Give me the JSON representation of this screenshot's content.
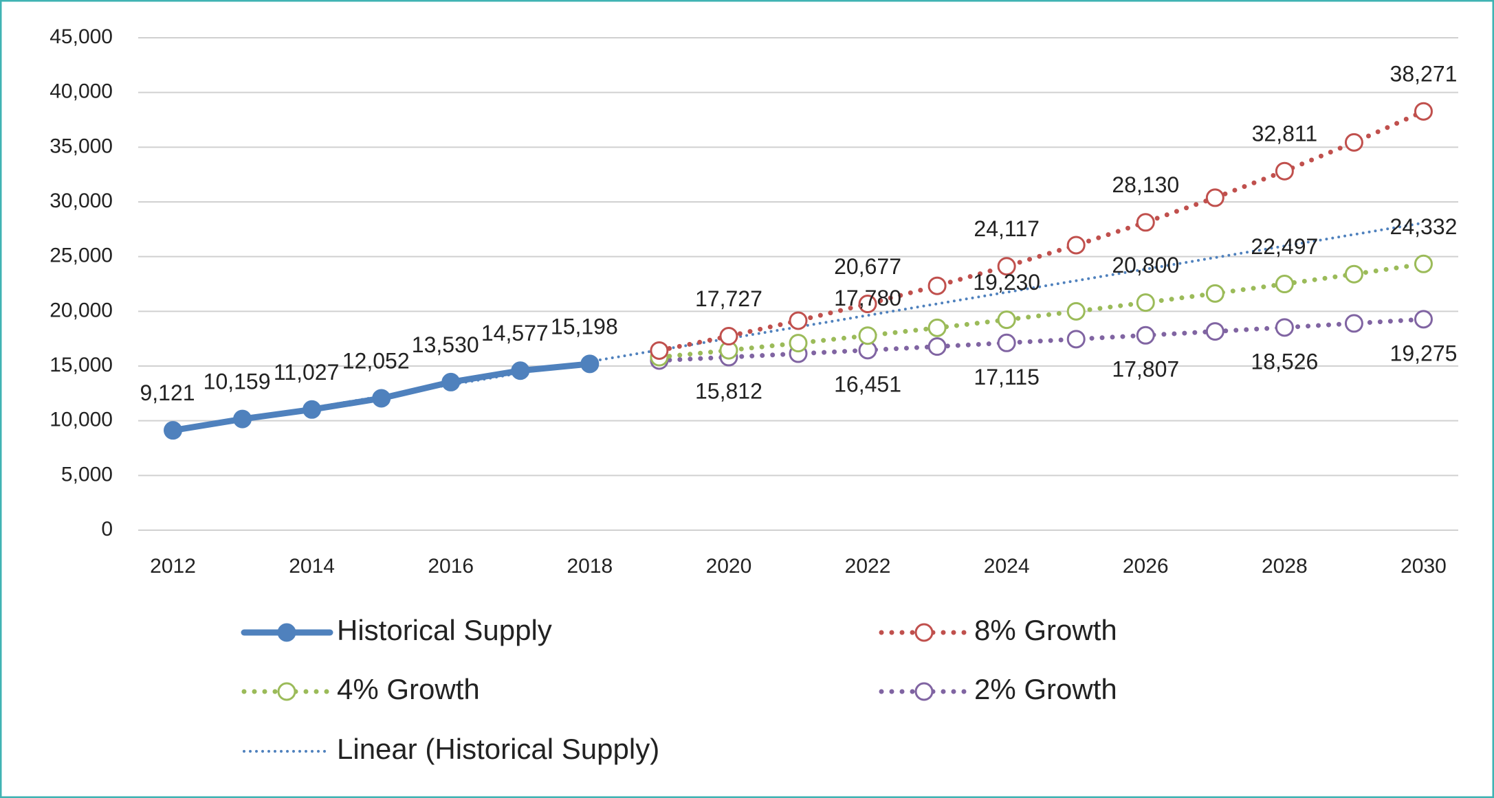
{
  "chart_data": {
    "type": "line",
    "x": [
      2012,
      2013,
      2014,
      2015,
      2016,
      2017,
      2018,
      2019,
      2020,
      2021,
      2022,
      2023,
      2024,
      2025,
      2026,
      2027,
      2028,
      2029,
      2030
    ],
    "xlim": [
      2011.5,
      2030.5
    ],
    "xticks": [
      2012,
      2014,
      2016,
      2018,
      2020,
      2022,
      2024,
      2026,
      2028,
      2030
    ],
    "ylim": [
      0,
      45000
    ],
    "yticks": [
      0,
      {
        "value": 5000,
        "label": "5,000"
      },
      {
        "value": 10000,
        "label": "10,000"
      },
      {
        "value": 15000,
        "label": "15,000"
      },
      {
        "value": 20000,
        "label": "20,000"
      },
      {
        "value": 25000,
        "label": "25,000"
      },
      {
        "value": 30000,
        "label": "30,000"
      },
      {
        "value": 35000,
        "label": "35,000"
      },
      {
        "value": 40000,
        "label": "40,000"
      },
      {
        "value": 45000,
        "label": "45,000"
      }
    ],
    "grid": true,
    "legend": "bottom",
    "series": [
      {
        "name": "Historical Supply",
        "color": "#4f81bd",
        "line_style": "solid",
        "marker": "filled-circle",
        "label_side": "above",
        "values": [
          9121,
          10159,
          11027,
          12052,
          13530,
          14577,
          15198,
          null,
          null,
          null,
          null,
          null,
          null,
          null,
          null,
          null,
          null,
          null,
          null
        ],
        "value_labels": [
          "9,121",
          "10,159",
          "11,027",
          "12,052",
          "13,530",
          "14,577",
          "15,198",
          null,
          null,
          null,
          null,
          null,
          null,
          null,
          null,
          null,
          null,
          null,
          null
        ]
      },
      {
        "name": "8% Growth",
        "color": "#c0504d",
        "line_style": "dotted",
        "marker": "open-circle",
        "label_side": "above",
        "values": [
          null,
          null,
          null,
          null,
          null,
          null,
          null,
          16414,
          17727,
          19146,
          20677,
          22331,
          24117,
          26047,
          28130,
          30381,
          32811,
          35436,
          38271
        ],
        "value_labels": [
          null,
          null,
          null,
          null,
          null,
          null,
          null,
          null,
          "17,727",
          null,
          "20,677",
          null,
          "24,117",
          null,
          "28,130",
          null,
          "32,811",
          null,
          "38,271"
        ]
      },
      {
        "name": "4% Growth",
        "color": "#9bbb59",
        "line_style": "dotted",
        "marker": "open-circle",
        "label_side": "above",
        "values": [
          null,
          null,
          null,
          null,
          null,
          null,
          null,
          15806,
          16438,
          17096,
          17780,
          18491,
          19230,
          19999,
          20800,
          21632,
          22497,
          23397,
          24332
        ],
        "value_labels": [
          null,
          null,
          null,
          null,
          null,
          null,
          null,
          null,
          null,
          null,
          "17,780",
          null,
          "19,230",
          null,
          "20,800",
          null,
          "22,497",
          null,
          "24,332"
        ]
      },
      {
        "name": "2% Growth",
        "color": "#8064a2",
        "line_style": "dotted",
        "marker": "open-circle",
        "label_side": "below",
        "values": [
          null,
          null,
          null,
          null,
          null,
          null,
          null,
          15502,
          15812,
          16128,
          16451,
          16780,
          17115,
          17458,
          17807,
          18163,
          18526,
          18897,
          19275
        ],
        "value_labels": [
          null,
          null,
          null,
          null,
          null,
          null,
          null,
          null,
          "15,812",
          null,
          "16,451",
          null,
          "17,115",
          null,
          "17,807",
          null,
          "18,526",
          null,
          "19,275"
        ]
      },
      {
        "name": "Linear (Historical Supply)",
        "color": "#4f81bd",
        "line_style": "dotted",
        "marker": "none",
        "values": [
          9070,
          10126,
          11181,
          12238,
          13294,
          14350,
          15406,
          16462,
          17518,
          18574,
          19631,
          20687,
          21743,
          22799,
          23855,
          24911,
          25967,
          27023,
          28080
        ]
      }
    ]
  }
}
